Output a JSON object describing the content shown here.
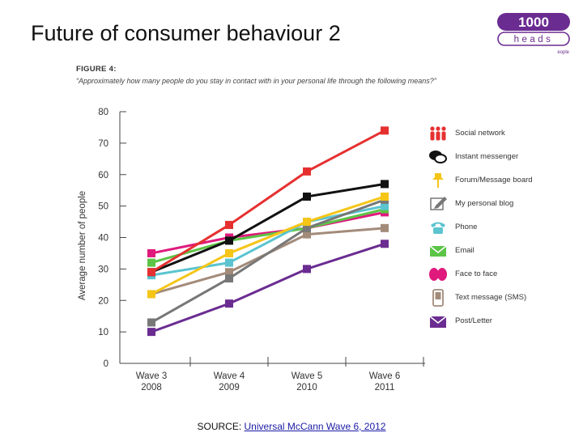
{
  "slide": {
    "title": "Future of consumer behaviour 2",
    "source_prefix": "SOURCE: ",
    "source_link": "Universal McCann Wave 6, 2012"
  },
  "logo": {
    "top_text": "1000",
    "middle_text": "heads",
    "bottom_text": "eople",
    "color": "#6b2c91"
  },
  "figure": {
    "label": "FIGURE 4:",
    "question": "“Approximately how many people do you stay in contact with in your personal life through the following means?”"
  },
  "chart_data": {
    "type": "line",
    "title": "",
    "xlabel": "",
    "ylabel": "Average number of people",
    "ylim": [
      0,
      80
    ],
    "yticks": [
      0,
      10,
      20,
      30,
      40,
      50,
      60,
      70,
      80
    ],
    "categories": [
      "Wave 3\n2008",
      "Wave 4\n2009",
      "Wave 5\n2010",
      "Wave 6\n2011"
    ],
    "grid": false,
    "legend_position": "right",
    "series": [
      {
        "name": "Social network",
        "color": "#e63030",
        "icon": "people-icon",
        "values": [
          29,
          44,
          61,
          74
        ]
      },
      {
        "name": "Instant messenger",
        "color": "#111111",
        "icon": "chat-bubbles-icon",
        "values": [
          29,
          39,
          53,
          57
        ]
      },
      {
        "name": "Forum/Message board",
        "color": "#f5c518",
        "icon": "pushpin-icon",
        "values": [
          22,
          35,
          45,
          53
        ]
      },
      {
        "name": "My personal blog",
        "color": "#777777",
        "icon": "pencil-icon",
        "values": [
          13,
          27,
          43,
          52
        ]
      },
      {
        "name": "Phone",
        "color": "#5bc4d0",
        "icon": "phone-icon",
        "values": [
          28,
          32,
          45,
          50
        ]
      },
      {
        "name": "Email",
        "color": "#5cc447",
        "icon": "envelope-arrow-icon",
        "values": [
          32,
          39,
          43,
          49
        ]
      },
      {
        "name": "Face to face",
        "color": "#e0197d",
        "icon": "faces-icon",
        "values": [
          35,
          40,
          43,
          48
        ]
      },
      {
        "name": "Text message (SMS)",
        "color": "#a38b7a",
        "icon": "mobile-phone-icon",
        "values": [
          22,
          29,
          41,
          43
        ]
      },
      {
        "name": "Post/Letter",
        "color": "#6b2c91",
        "icon": "letter-icon",
        "values": [
          10,
          19,
          30,
          38
        ]
      }
    ]
  }
}
